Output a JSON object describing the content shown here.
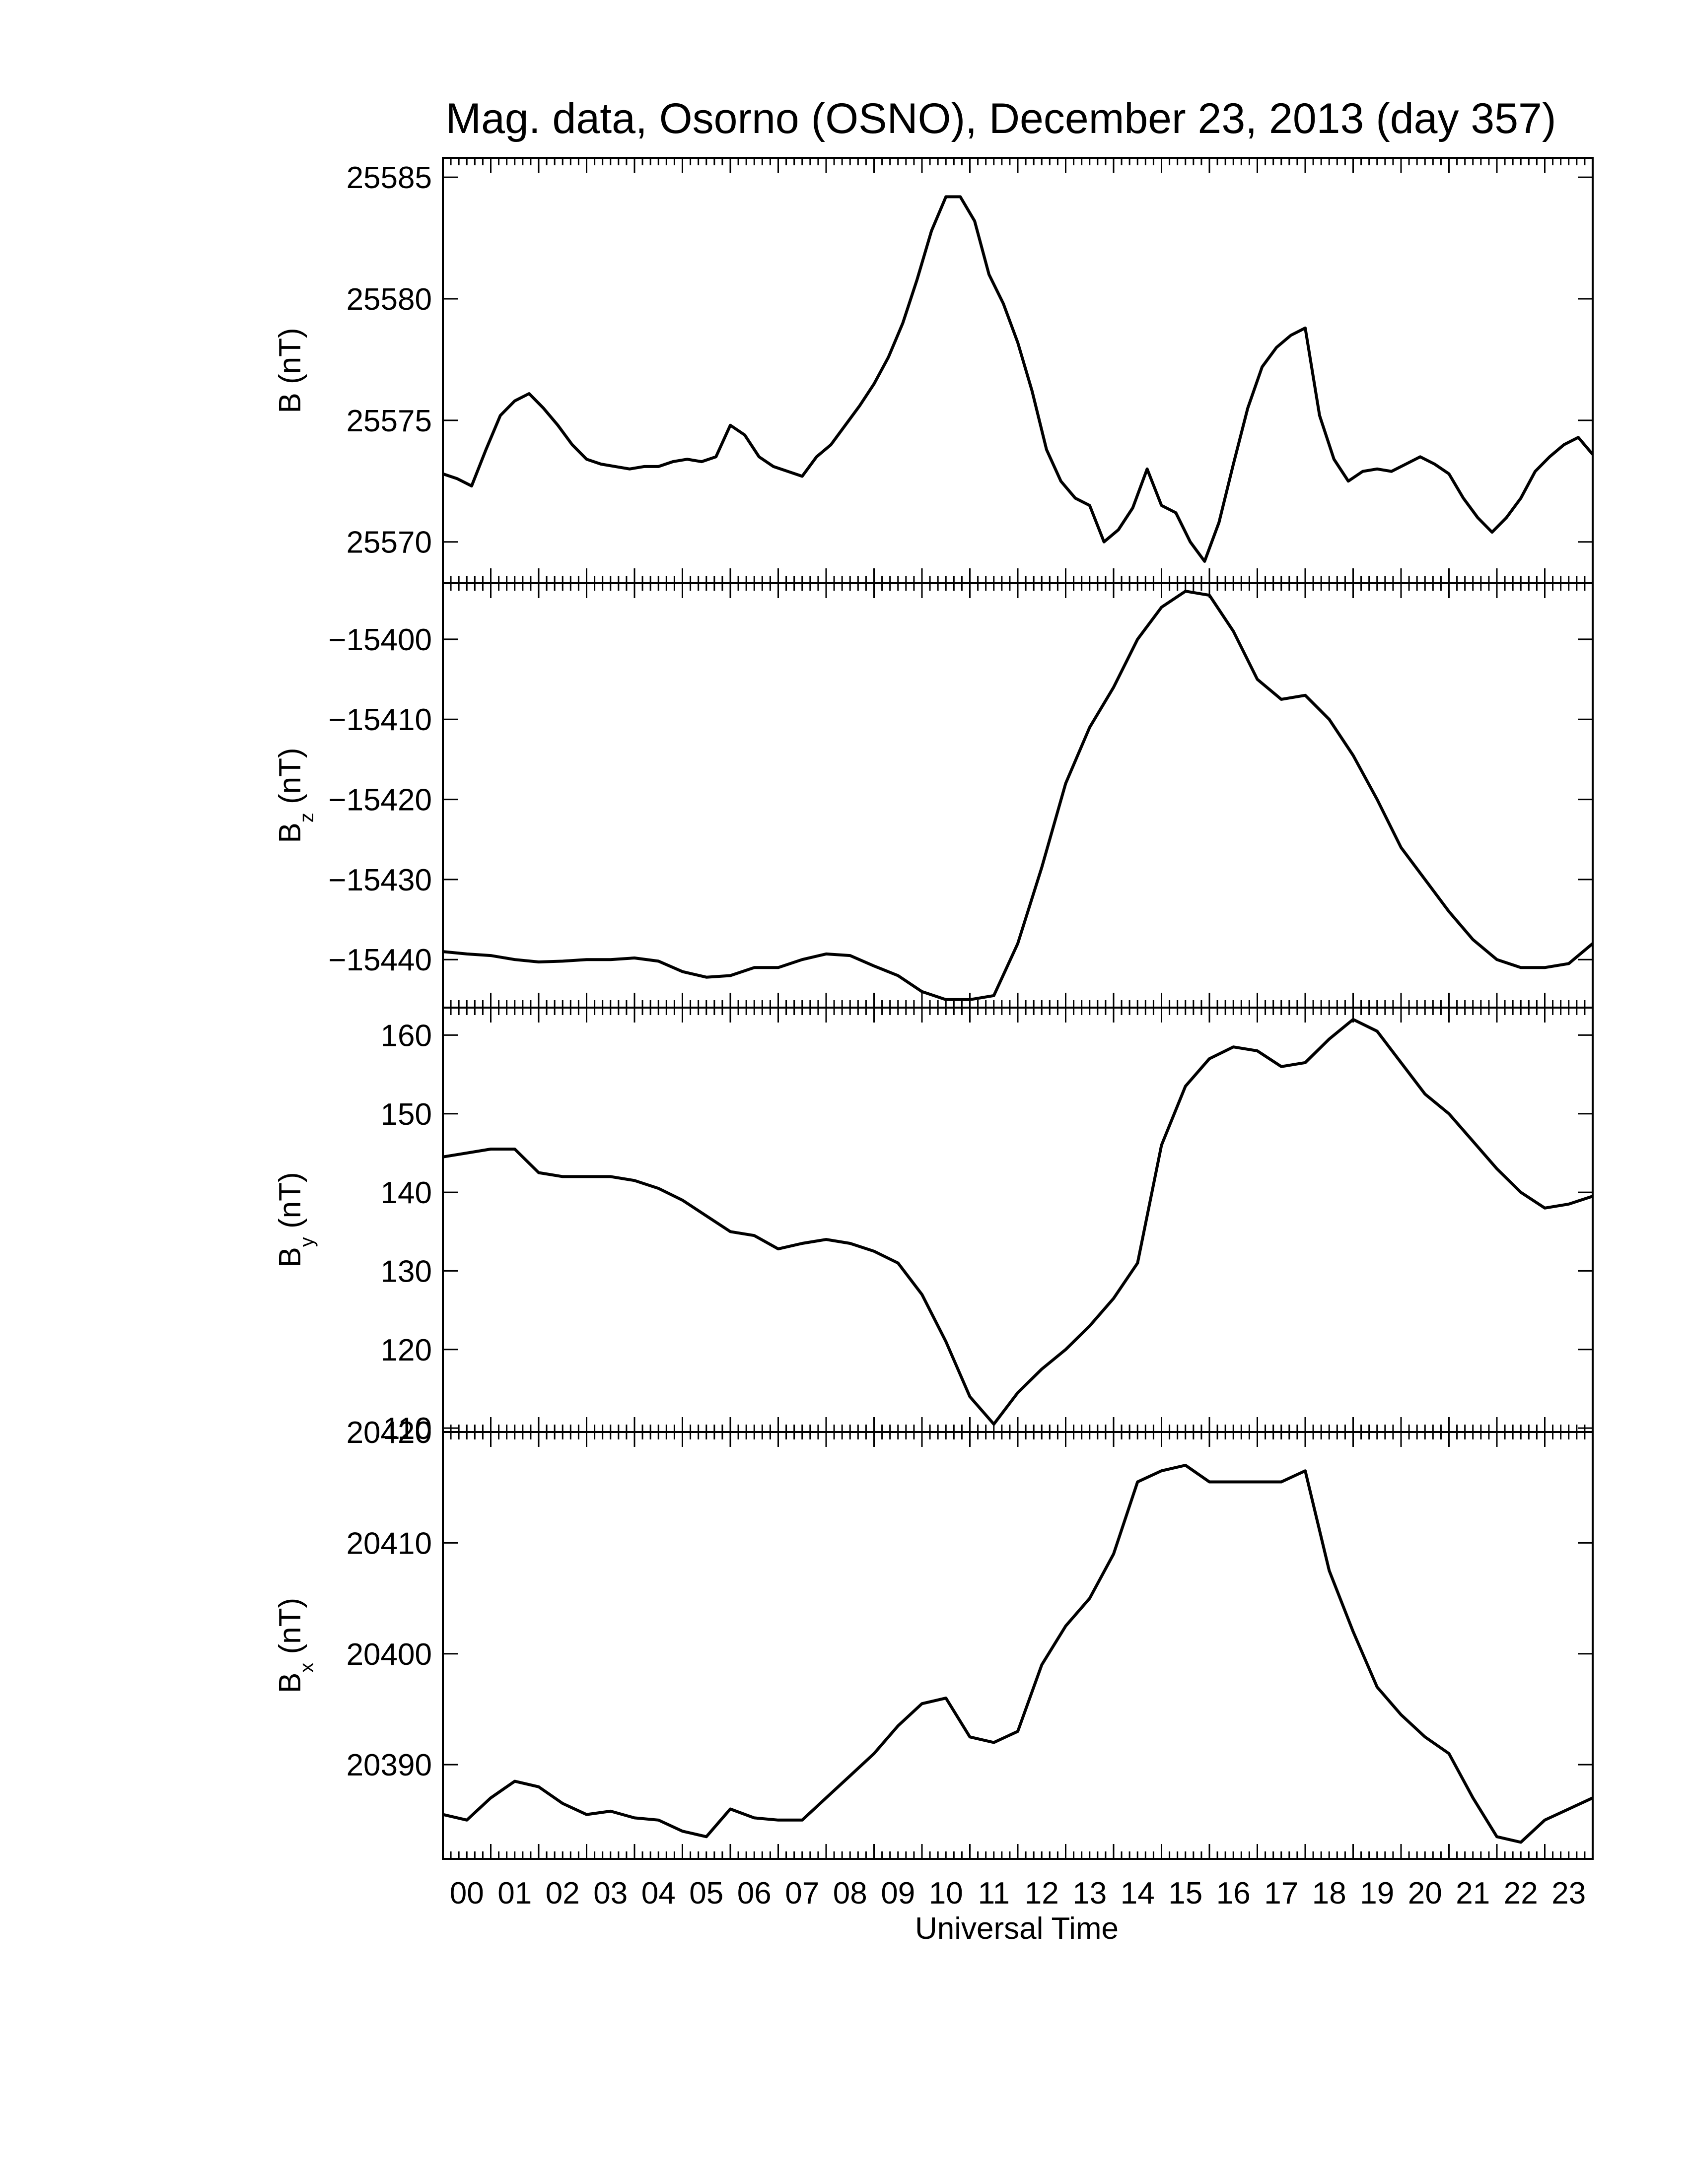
{
  "title": "Mag. data, Osorno (OSNO), December 23, 2013 (day 357)",
  "xlabel": "Universal Time",
  "xticks": [
    "00",
    "01",
    "02",
    "03",
    "04",
    "05",
    "06",
    "07",
    "08",
    "09",
    "10",
    "11",
    "12",
    "13",
    "14",
    "15",
    "16",
    "17",
    "18",
    "19",
    "20",
    "21",
    "22",
    "23"
  ],
  "chart_data": [
    {
      "type": "line",
      "id": "B",
      "ylabel": "B (nT)",
      "ylabel_main": "B",
      "ylabel_sub": "",
      "ylabel_unit": "(nT)",
      "ylim": [
        25568.3,
        25585.8
      ],
      "yticks": [
        25570,
        25575,
        25580,
        25585
      ],
      "x": [
        0.0,
        0.3,
        0.6,
        0.9,
        1.2,
        1.5,
        1.8,
        2.1,
        2.4,
        2.7,
        3.0,
        3.3,
        3.6,
        3.9,
        4.2,
        4.5,
        4.8,
        5.1,
        5.4,
        5.7,
        6.0,
        6.3,
        6.6,
        6.9,
        7.2,
        7.5,
        7.8,
        8.1,
        8.4,
        8.7,
        9.0,
        9.3,
        9.6,
        9.9,
        10.2,
        10.5,
        10.8,
        11.1,
        11.4,
        11.7,
        12.0,
        12.3,
        12.6,
        12.9,
        13.2,
        13.5,
        13.8,
        14.1,
        14.4,
        14.7,
        15.0,
        15.3,
        15.6,
        15.9,
        16.2,
        16.5,
        16.8,
        17.1,
        17.4,
        17.7,
        18.0,
        18.3,
        18.6,
        18.9,
        19.2,
        19.5,
        19.8,
        20.1,
        20.4,
        20.7,
        21.0,
        21.3,
        21.6,
        21.9,
        22.2,
        22.5,
        22.8,
        23.1,
        23.4,
        23.7,
        24.0
      ],
      "y": [
        25572.8,
        25572.6,
        25572.3,
        25573.8,
        25575.2,
        25575.8,
        25576.1,
        25575.5,
        25574.8,
        25574.0,
        25573.4,
        25573.2,
        25573.1,
        25573.0,
        25573.1,
        25573.1,
        25573.3,
        25573.4,
        25573.3,
        25573.5,
        25574.8,
        25574.4,
        25573.5,
        25573.1,
        25572.9,
        25572.7,
        25573.5,
        25574.0,
        25574.8,
        25575.6,
        25576.5,
        25577.6,
        25579.0,
        25580.8,
        25582.8,
        25584.2,
        25584.2,
        25583.2,
        25581.0,
        25579.8,
        25578.2,
        25576.2,
        25573.8,
        25572.5,
        25571.8,
        25571.5,
        25570.0,
        25570.5,
        25571.4,
        25573.0,
        25571.5,
        25571.2,
        25570.0,
        25569.2,
        25570.8,
        25573.2,
        25575.5,
        25577.2,
        25578.0,
        25578.5,
        25578.8,
        25575.2,
        25573.4,
        25572.5,
        25572.9,
        25573.0,
        25572.9,
        25573.2,
        25573.5,
        25573.2,
        25572.8,
        25571.8,
        25571.0,
        25570.4,
        25571.0,
        25571.8,
        25572.9,
        25573.5,
        25574.0,
        25574.3,
        25573.6
      ]
    },
    {
      "type": "line",
      "id": "Bz",
      "ylabel": "Bz (nT)",
      "ylabel_main": "B",
      "ylabel_sub": "z",
      "ylabel_unit": "(nT)",
      "ylim": [
        -15446.0,
        -15393.0
      ],
      "yticks": [
        -15400,
        -15410,
        -15420,
        -15430,
        -15440
      ],
      "x": [
        0.0,
        0.5,
        1.0,
        1.5,
        2.0,
        2.5,
        3.0,
        3.5,
        4.0,
        4.5,
        5.0,
        5.5,
        6.0,
        6.5,
        7.0,
        7.5,
        8.0,
        8.5,
        9.0,
        9.5,
        10.0,
        10.5,
        11.0,
        11.5,
        12.0,
        12.5,
        13.0,
        13.5,
        14.0,
        14.5,
        15.0,
        15.5,
        16.0,
        16.5,
        17.0,
        17.5,
        18.0,
        18.5,
        19.0,
        19.5,
        20.0,
        20.5,
        21.0,
        21.5,
        22.0,
        22.5,
        23.0,
        23.5,
        24.0
      ],
      "y": [
        -15439.0,
        -15439.3,
        -15439.5,
        -15440.0,
        -15440.3,
        -15440.2,
        -15440.0,
        -15440.0,
        -15439.8,
        -15440.2,
        -15441.5,
        -15442.2,
        -15442.0,
        -15441.0,
        -15441.0,
        -15440.0,
        -15439.3,
        -15439.5,
        -15440.8,
        -15442.0,
        -15444.0,
        -15445.0,
        -15445.0,
        -15444.5,
        -15438.0,
        -15428.5,
        -15418.0,
        -15411.0,
        -15406.0,
        -15400.0,
        -15396.0,
        -15394.0,
        -15394.5,
        -15399.0,
        -15405.0,
        -15407.5,
        -15407.0,
        -15410.0,
        -15414.5,
        -15420.0,
        -15426.0,
        -15430.0,
        -15434.0,
        -15437.5,
        -15440.0,
        -15441.0,
        -15441.0,
        -15440.5,
        -15438.0
      ]
    },
    {
      "type": "line",
      "id": "By",
      "ylabel": "By (nT)",
      "ylabel_main": "B",
      "ylabel_sub": "y",
      "ylabel_unit": "(nT)",
      "ylim": [
        109.5,
        163.5
      ],
      "yticks": [
        110,
        120,
        130,
        140,
        150,
        160
      ],
      "x": [
        0.0,
        0.5,
        1.0,
        1.5,
        2.0,
        2.5,
        3.0,
        3.5,
        4.0,
        4.5,
        5.0,
        5.5,
        6.0,
        6.5,
        7.0,
        7.5,
        8.0,
        8.5,
        9.0,
        9.5,
        10.0,
        10.5,
        11.0,
        11.5,
        12.0,
        12.5,
        13.0,
        13.5,
        14.0,
        14.5,
        15.0,
        15.5,
        16.0,
        16.5,
        17.0,
        17.5,
        18.0,
        18.5,
        19.0,
        19.5,
        20.0,
        20.5,
        21.0,
        21.5,
        22.0,
        22.5,
        23.0,
        23.5,
        24.0
      ],
      "y": [
        144.5,
        145.0,
        145.5,
        145.5,
        142.5,
        142.0,
        142.0,
        142.0,
        141.5,
        140.5,
        139.0,
        137.0,
        135.0,
        134.5,
        132.8,
        133.5,
        134.0,
        133.5,
        132.5,
        131.0,
        127.0,
        121.0,
        114.0,
        110.5,
        114.5,
        117.5,
        120.0,
        123.0,
        126.5,
        131.0,
        146.0,
        153.5,
        157.0,
        158.5,
        158.0,
        156.0,
        156.5,
        159.5,
        162.0,
        160.5,
        156.5,
        152.5,
        150.0,
        146.5,
        143.0,
        140.0,
        138.0,
        138.5,
        139.5
      ]
    },
    {
      "type": "line",
      "id": "Bx",
      "ylabel": "Bx (nT)",
      "ylabel_main": "B",
      "ylabel_sub": "x",
      "ylabel_unit": "(nT)",
      "ylim": [
        20381.5,
        20420.0
      ],
      "yticks": [
        20390,
        20400,
        20410,
        20420
      ],
      "x": [
        0.0,
        0.5,
        1.0,
        1.5,
        2.0,
        2.5,
        3.0,
        3.5,
        4.0,
        4.5,
        5.0,
        5.5,
        6.0,
        6.5,
        7.0,
        7.5,
        8.0,
        8.5,
        9.0,
        9.5,
        10.0,
        10.5,
        11.0,
        11.5,
        12.0,
        12.5,
        13.0,
        13.5,
        14.0,
        14.5,
        15.0,
        15.5,
        16.0,
        16.5,
        17.0,
        17.5,
        18.0,
        18.5,
        19.0,
        19.5,
        20.0,
        20.5,
        21.0,
        21.5,
        22.0,
        22.5,
        23.0,
        23.5,
        24.0
      ],
      "y": [
        20385.5,
        20385.0,
        20387.0,
        20388.5,
        20388.0,
        20386.5,
        20385.5,
        20385.8,
        20385.2,
        20385.0,
        20384.0,
        20383.5,
        20386.0,
        20385.2,
        20385.0,
        20385.0,
        20387.0,
        20389.0,
        20391.0,
        20393.5,
        20395.5,
        20396.0,
        20392.5,
        20392.0,
        20393.0,
        20399.0,
        20402.5,
        20405.0,
        20409.0,
        20415.5,
        20416.5,
        20417.0,
        20415.5,
        20415.5,
        20415.5,
        20415.5,
        20416.5,
        20407.5,
        20402.0,
        20397.0,
        20394.5,
        20392.5,
        20391.0,
        20387.0,
        20383.5,
        20383.0,
        20385.0,
        20386.0,
        20387.0
      ]
    }
  ]
}
